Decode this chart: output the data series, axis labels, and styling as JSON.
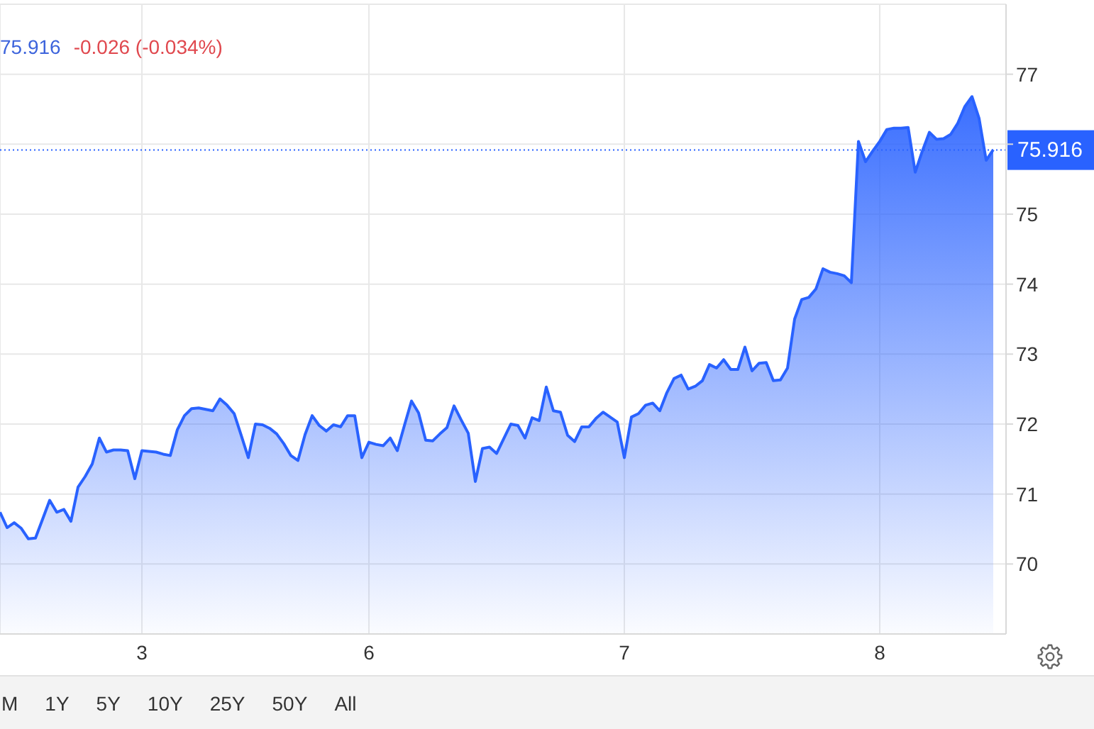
{
  "chart_data": {
    "type": "area",
    "title": "75.916",
    "subtitle": "-0.026 (-0.034%)",
    "categories": [
      null,
      null,
      null,
      null,
      null,
      null,
      null,
      null,
      null,
      null,
      null,
      null,
      null,
      null,
      null,
      null,
      null,
      null,
      null,
      null,
      "3",
      null,
      null,
      null,
      null,
      null,
      null,
      null,
      null,
      null,
      null,
      null,
      null,
      null,
      null,
      null,
      null,
      null,
      null,
      null,
      null,
      null,
      null,
      null,
      null,
      null,
      null,
      null,
      null,
      null,
      null,
      null,
      "6",
      null,
      null,
      null,
      null,
      null,
      null,
      null,
      null,
      null,
      null,
      null,
      null,
      null,
      null,
      null,
      null,
      null,
      null,
      null,
      null,
      null,
      null,
      null,
      null,
      null,
      null,
      null,
      null,
      null,
      null,
      null,
      null,
      null,
      null,
      null,
      "7",
      null,
      null,
      null,
      null,
      null,
      null,
      null,
      null,
      null,
      null,
      null,
      null,
      null,
      null,
      null,
      null,
      null,
      null,
      null,
      null,
      null,
      null,
      null,
      null,
      null,
      null,
      null,
      null,
      null,
      null,
      null,
      null,
      null,
      null,
      null,
      "8",
      null,
      null,
      null,
      null,
      null,
      null,
      null,
      null,
      null,
      null,
      null,
      null,
      null,
      null,
      null,
      null
    ],
    "values": [
      70.74,
      70.52,
      70.59,
      70.51,
      70.36,
      70.37,
      70.64,
      70.91,
      70.74,
      70.78,
      70.61,
      71.1,
      71.25,
      71.43,
      71.8,
      71.6,
      71.63,
      71.63,
      71.62,
      71.22,
      71.62,
      71.61,
      71.6,
      71.57,
      71.55,
      71.92,
      72.12,
      72.22,
      72.23,
      72.21,
      72.19,
      72.36,
      72.27,
      72.15,
      71.84,
      71.52,
      72.0,
      71.99,
      71.94,
      71.86,
      71.72,
      71.55,
      71.48,
      71.85,
      72.12,
      71.98,
      71.9,
      71.99,
      71.96,
      72.12,
      72.12,
      71.52,
      71.74,
      71.71,
      71.69,
      71.8,
      71.62,
      71.98,
      72.33,
      72.16,
      71.77,
      71.76,
      71.86,
      71.95,
      72.26,
      72.06,
      71.87,
      71.18,
      71.65,
      71.67,
      71.58,
      71.79,
      72.0,
      71.98,
      71.8,
      72.09,
      72.05,
      72.53,
      72.19,
      72.17,
      71.84,
      71.75,
      71.96,
      71.96,
      72.08,
      72.17,
      72.1,
      72.03,
      71.52,
      72.1,
      72.15,
      72.27,
      72.3,
      72.19,
      72.45,
      72.65,
      72.7,
      72.5,
      72.54,
      72.62,
      72.85,
      72.8,
      72.92,
      72.78,
      72.78,
      73.1,
      72.76,
      72.87,
      72.88,
      72.62,
      72.63,
      72.8,
      73.5,
      73.78,
      73.81,
      73.93,
      74.22,
      74.17,
      74.15,
      74.12,
      74.02,
      76.04,
      75.75,
      75.9,
      76.04,
      76.21,
      76.23,
      76.23,
      76.24,
      75.6,
      75.9,
      76.17,
      76.07,
      76.08,
      76.14,
      76.3,
      76.54,
      76.68,
      76.37,
      75.77,
      75.92
    ],
    "color": "#2962ff",
    "ylim": [
      69,
      78
    ],
    "yticks": [
      70,
      71,
      72,
      73,
      74,
      75,
      {
        "value": 76,
        "label": null
      },
      77
    ],
    "grid": true,
    "ref_lines": [
      {
        "axis": "y",
        "value": 75.916,
        "label": "75.916",
        "color": "#2962ff",
        "line_style": "dotted"
      }
    ],
    "annotations": [
      "M",
      "1Y",
      "5Y",
      "10Y",
      "25Y",
      "50Y",
      "All"
    ]
  }
}
